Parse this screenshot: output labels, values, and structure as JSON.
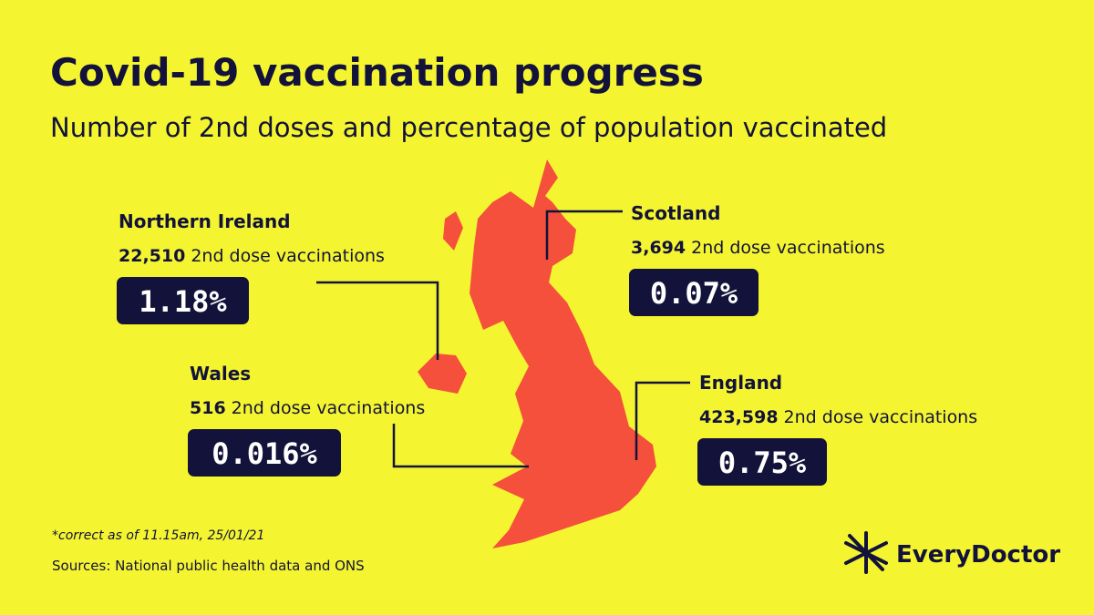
{
  "header": {
    "title": "Covid-19 vaccination progress",
    "subtitle": "Number of 2nd doses and percentage of population vaccinated"
  },
  "regions": [
    {
      "name": "Northern Ireland",
      "doses": "22,510",
      "doses_label": "2nd dose vaccinations",
      "percent": "1.18%"
    },
    {
      "name": "Scotland",
      "doses": "3,694",
      "doses_label": "2nd dose vaccinations",
      "percent": "0.07%"
    },
    {
      "name": "Wales",
      "doses": "516",
      "doses_label": "2nd dose vaccinations",
      "percent": "0.016%"
    },
    {
      "name": "England",
      "doses": "423,598",
      "doses_label": "2nd dose vaccinations",
      "percent": "0.75%"
    }
  ],
  "footer": {
    "note": "*correct as of 11.15am, 25/01/21",
    "sources": "Sources: National public health data and ONS",
    "logo": "EveryDoctor"
  }
}
